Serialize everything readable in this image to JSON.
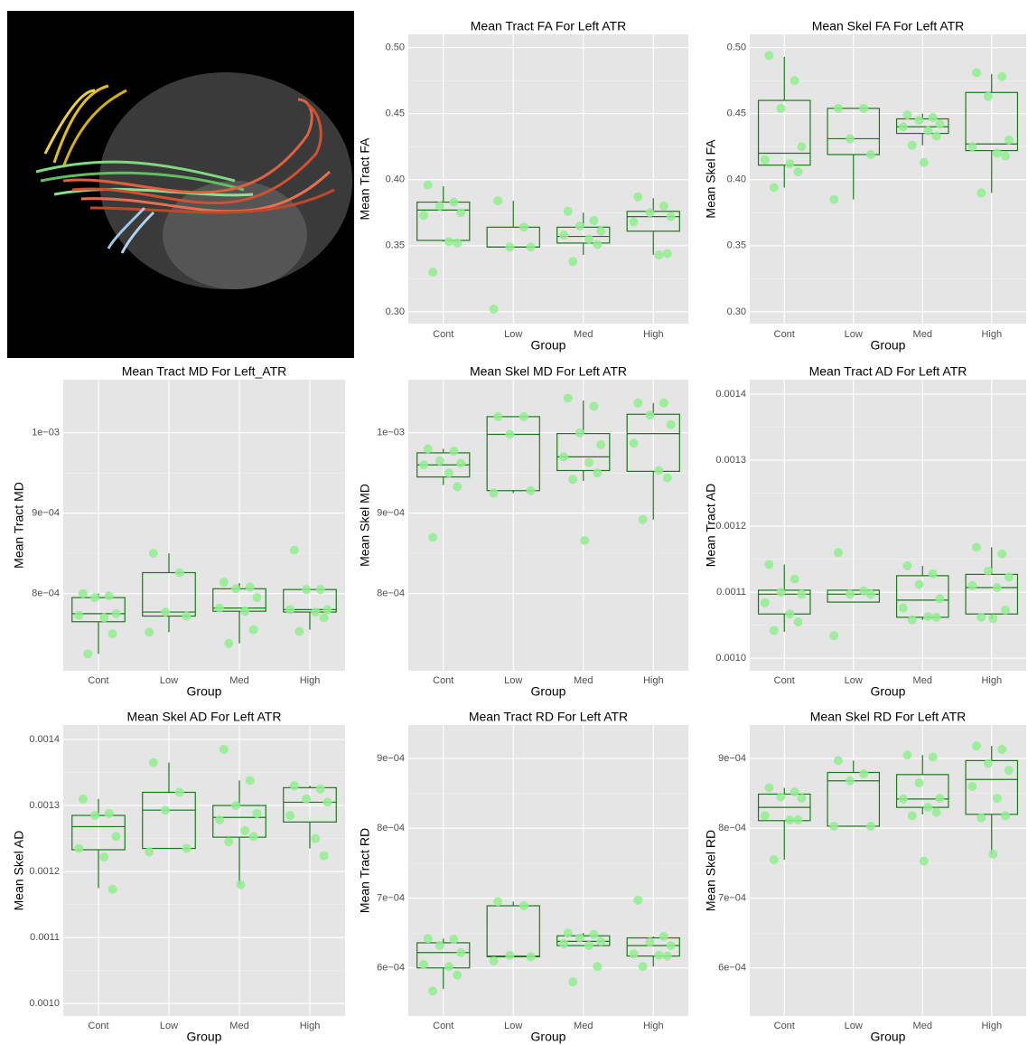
{
  "chart_data": [
    {
      "type": "box",
      "title": "Mean Tract FA For Left ATR",
      "xlabel": "Group",
      "ylabel": "Mean Tract FA",
      "categories": [
        "Cont",
        "Low",
        "Med",
        "High"
      ],
      "box_color": "#1a7a1a",
      "point_color": "#90ee90",
      "grid": true,
      "ylim": [
        0.291,
        0.51
      ],
      "yticks": [
        {
          "value": 0.3,
          "label": "0.30"
        },
        0.35,
        {
          "value": 0.4,
          "label": "0.40"
        },
        0.45,
        {
          "value": 0.5,
          "label": "0.50"
        }
      ],
      "boxes": {
        "lower": [
          0.353,
          0.349,
          0.343,
          0.343
        ],
        "q1": [
          0.354,
          0.349,
          0.352,
          0.361
        ],
        "median": [
          0.377,
          0.349,
          0.357,
          0.372
        ],
        "q3": [
          0.383,
          0.364,
          0.364,
          0.376
        ],
        "upper": [
          0.395,
          0.384,
          0.375,
          0.386
        ]
      },
      "points": [
        [
          0.396,
          0.383,
          0.38,
          0.375,
          0.373,
          0.353,
          0.352,
          0.33
        ],
        [
          0.384,
          0.364,
          0.349,
          0.349,
          0.302
        ],
        [
          0.376,
          0.369,
          0.365,
          0.361,
          0.358,
          0.355,
          0.351,
          0.338
        ],
        [
          0.387,
          0.38,
          0.375,
          0.372,
          0.368,
          0.343,
          0.344
        ]
      ]
    },
    {
      "type": "box",
      "title": "Mean Skel FA For Left ATR",
      "xlabel": "Group",
      "ylabel": "Mean Skel FA",
      "categories": [
        "Cont",
        "Low",
        "Med",
        "High"
      ],
      "box_color": "#1a7a1a",
      "point_color": "#90ee90",
      "grid": true,
      "ylim": [
        0.291,
        0.51
      ],
      "yticks": [
        {
          "value": 0.3,
          "label": "0.30"
        },
        0.35,
        {
          "value": 0.4,
          "label": "0.40"
        },
        0.45,
        {
          "value": 0.5,
          "label": "0.50"
        }
      ],
      "boxes": {
        "lower": [
          0.394,
          0.385,
          0.426,
          0.39
        ],
        "q1": [
          0.411,
          0.419,
          0.435,
          0.422
        ],
        "median": [
          0.42,
          0.431,
          0.44,
          0.427
        ],
        "q3": [
          0.46,
          0.454,
          0.446,
          0.466
        ],
        "upper": [
          0.493,
          0.454,
          0.45,
          0.48
        ]
      },
      "points": [
        [
          0.494,
          0.475,
          0.454,
          0.425,
          0.415,
          0.412,
          0.406,
          0.394
        ],
        [
          0.454,
          0.454,
          0.431,
          0.419,
          0.385
        ],
        [
          0.449,
          0.447,
          0.445,
          0.442,
          0.44,
          0.437,
          0.433,
          0.426,
          0.413
        ],
        [
          0.481,
          0.478,
          0.463,
          0.43,
          0.425,
          0.42,
          0.418,
          0.39
        ]
      ]
    },
    {
      "type": "box",
      "title": "Mean Tract MD For Left_ATR",
      "xlabel": "Group",
      "ylabel": "Mean Tract MD",
      "categories": [
        "Cont",
        "Low",
        "Med",
        "High"
      ],
      "box_color": "#1a7a1a",
      "point_color": "#90ee90",
      "grid": true,
      "ylim": [
        0.000704,
        0.001066
      ],
      "yticks": [
        {
          "value": 0.0008,
          "label": "8e−04"
        },
        {
          "value": 0.0009,
          "label": "9e−04"
        },
        {
          "value": 0.001,
          "label": "1e−03"
        }
      ],
      "boxes": {
        "lower": [
          0.000725,
          0.000752,
          0.000738,
          0.000755
        ],
        "q1": [
          0.000765,
          0.000772,
          0.000778,
          0.000777
        ],
        "median": [
          0.000775,
          0.000777,
          0.000782,
          0.00078
        ],
        "q3": [
          0.000795,
          0.000826,
          0.000806,
          0.000805
        ],
        "upper": [
          0.0008,
          0.00085,
          0.000813,
          0.000806
        ]
      },
      "points": [
        [
          0.0008,
          0.000797,
          0.000795,
          0.000775,
          0.000773,
          0.00077,
          0.00075,
          0.000725
        ],
        [
          0.00085,
          0.000826,
          0.000777,
          0.000772,
          0.000752
        ],
        [
          0.000814,
          0.000808,
          0.000806,
          0.000795,
          0.000782,
          0.000778,
          0.000755,
          0.000738
        ],
        [
          0.000854,
          0.000805,
          0.000805,
          0.00078,
          0.00078,
          0.000777,
          0.00077,
          0.000753
        ]
      ]
    },
    {
      "type": "box",
      "title": "Mean Skel MD For Left ATR",
      "xlabel": "Group",
      "ylabel": "Mean Skel MD",
      "categories": [
        "Cont",
        "Low",
        "Med",
        "High"
      ],
      "box_color": "#1a7a1a",
      "point_color": "#90ee90",
      "grid": true,
      "ylim": [
        0.000704,
        0.001066
      ],
      "yticks": [
        {
          "value": 0.0008,
          "label": "8e−04"
        },
        {
          "value": 0.0009,
          "label": "9e−04"
        },
        {
          "value": 0.001,
          "label": "1e−03"
        }
      ],
      "boxes": {
        "lower": [
          0.000935,
          0.000925,
          0.00094,
          0.000892
        ],
        "q1": [
          0.000945,
          0.000928,
          0.000953,
          0.000952
        ],
        "median": [
          0.00096,
          0.000998,
          0.00097,
          0.000999
        ],
        "q3": [
          0.000975,
          0.00102,
          0.000999,
          0.001023
        ],
        "upper": [
          0.00098,
          0.00102,
          0.00104,
          0.001037
        ]
      },
      "points": [
        [
          0.00098,
          0.000977,
          0.000965,
          0.000962,
          0.00096,
          0.00095,
          0.000933,
          0.00087
        ],
        [
          0.00102,
          0.00102,
          0.000998,
          0.000928,
          0.000925
        ],
        [
          0.001043,
          0.001033,
          0.001,
          0.000985,
          0.00097,
          0.000963,
          0.00095,
          0.000942,
          0.000866
        ],
        [
          0.001037,
          0.001037,
          0.001022,
          0.00101,
          0.000987,
          0.000953,
          0.000944,
          0.000892
        ]
      ]
    },
    {
      "type": "box",
      "title": "Mean Tract AD For Left ATR",
      "xlabel": "Group",
      "ylabel": "Mean Tract AD",
      "categories": [
        "Cont",
        "Low",
        "Med",
        "High"
      ],
      "box_color": "#1a7a1a",
      "point_color": "#90ee90",
      "grid": true,
      "ylim": [
        0.000981,
        0.001422
      ],
      "yticks": [
        {
          "value": 0.001,
          "label": "0.0010"
        },
        0.0011,
        0.0012,
        0.0013,
        0.0014
      ],
      "boxes": {
        "lower": [
          0.00104,
          0.001085,
          0.001058,
          0.00106
        ],
        "q1": [
          0.001067,
          0.001085,
          0.001062,
          0.001067
        ],
        "median": [
          0.001097,
          0.001097,
          0.001088,
          0.001107
        ],
        "q3": [
          0.001103,
          0.001103,
          0.001125,
          0.001127
        ],
        "upper": [
          0.001142,
          0.001103,
          0.00114,
          0.001168
        ]
      },
      "points": [
        [
          0.001142,
          0.00112,
          0.0011,
          0.001097,
          0.001084,
          0.001067,
          0.001055,
          0.001042
        ],
        [
          0.00116,
          0.001102,
          0.001097,
          0.001097,
          0.001034
        ],
        [
          0.00114,
          0.001128,
          0.001112,
          0.00109,
          0.001076,
          0.001063,
          0.001062,
          0.001058
        ],
        [
          0.001168,
          0.001158,
          0.001132,
          0.001123,
          0.00111,
          0.001107,
          0.001073,
          0.001062,
          0.00106
        ]
      ]
    },
    {
      "type": "box",
      "title": "Mean Skel AD For Left ATR",
      "xlabel": "Group",
      "ylabel": "Mean Skel AD",
      "categories": [
        "Cont",
        "Low",
        "Med",
        "High"
      ],
      "box_color": "#1a7a1a",
      "point_color": "#90ee90",
      "grid": true,
      "ylim": [
        0.000981,
        0.001422
      ],
      "yticks": [
        {
          "value": 0.001,
          "label": "0.0010"
        },
        0.0011,
        0.0012,
        0.0013,
        0.0014
      ],
      "boxes": {
        "lower": [
          0.001175,
          0.001235,
          0.00118,
          0.001235
        ],
        "q1": [
          0.001233,
          0.001235,
          0.001252,
          0.001275
        ],
        "median": [
          0.001268,
          0.001293,
          0.001282,
          0.001305
        ],
        "q3": [
          0.001285,
          0.00132,
          0.0013,
          0.001327
        ],
        "upper": [
          0.00131,
          0.001365,
          0.001338,
          0.00133
        ]
      },
      "points": [
        [
          0.00131,
          0.001288,
          0.001285,
          0.001253,
          0.001235,
          0.001222,
          0.001173
        ],
        [
          0.001365,
          0.00132,
          0.001293,
          0.001235,
          0.00123
        ],
        [
          0.001385,
          0.001338,
          0.0013,
          0.001288,
          0.001278,
          0.001262,
          0.001253,
          0.001245,
          0.00118
        ],
        [
          0.00133,
          0.001325,
          0.00131,
          0.001305,
          0.001285,
          0.00125,
          0.001224
        ]
      ]
    },
    {
      "type": "box",
      "title": "Mean Tract RD For Left ATR",
      "xlabel": "Group",
      "ylabel": "Mean Tract RD",
      "categories": [
        "Cont",
        "Low",
        "Med",
        "High"
      ],
      "box_color": "#1a7a1a",
      "point_color": "#90ee90",
      "grid": true,
      "ylim": [
        0.000531,
        0.000948
      ],
      "yticks": [
        {
          "value": 0.0006,
          "label": "6e−04"
        },
        {
          "value": 0.0007,
          "label": "7e−04"
        },
        {
          "value": 0.0008,
          "label": "8e−04"
        },
        {
          "value": 0.0009,
          "label": "9e−04"
        }
      ],
      "boxes": {
        "lower": [
          0.00057,
          0.000616,
          0.000632,
          0.000602
        ],
        "q1": [
          0.0006,
          0.000616,
          0.000632,
          0.000617
        ],
        "median": [
          0.000622,
          0.000617,
          0.000638,
          0.000632
        ],
        "q3": [
          0.000636,
          0.000689,
          0.000646,
          0.000643
        ],
        "upper": [
          0.000642,
          0.000695,
          0.00065,
          0.000645
        ]
      },
      "points": [
        [
          0.000642,
          0.000641,
          0.000632,
          0.000622,
          0.000605,
          0.000602,
          0.00059,
          0.000567
        ],
        [
          0.000695,
          0.000689,
          0.000618,
          0.000616,
          0.00061
        ],
        [
          0.00065,
          0.000648,
          0.000643,
          0.000638,
          0.000635,
          0.000632,
          0.000602,
          0.00058
        ],
        [
          0.000697,
          0.000645,
          0.000637,
          0.000632,
          0.00062,
          0.000618,
          0.000617,
          0.000602
        ]
      ]
    },
    {
      "type": "box",
      "title": "Mean Skel RD For Left ATR",
      "xlabel": "Group",
      "ylabel": "Mean Skel RD",
      "categories": [
        "Cont",
        "Low",
        "Med",
        "High"
      ],
      "box_color": "#1a7a1a",
      "point_color": "#90ee90",
      "grid": true,
      "ylim": [
        0.000531,
        0.000948
      ],
      "yticks": [
        {
          "value": 0.0006,
          "label": "6e−04"
        },
        {
          "value": 0.0007,
          "label": "7e−04"
        },
        {
          "value": 0.0008,
          "label": "8e−04"
        },
        {
          "value": 0.0009,
          "label": "9e−04"
        }
      ],
      "boxes": {
        "lower": [
          0.000755,
          0.000803,
          0.00082,
          0.000763
        ],
        "q1": [
          0.000811,
          0.000803,
          0.00083,
          0.00082
        ],
        "median": [
          0.00083,
          0.000868,
          0.000842,
          0.00087
        ],
        "q3": [
          0.000849,
          0.00088,
          0.000877,
          0.000897
        ],
        "upper": [
          0.000858,
          0.000897,
          0.000905,
          0.000918
        ]
      },
      "points": [
        [
          0.000858,
          0.000852,
          0.000845,
          0.000843,
          0.000818,
          0.000812,
          0.000812,
          0.000755
        ],
        [
          0.000897,
          0.000878,
          0.000868,
          0.000803,
          0.000803
        ],
        [
          0.000905,
          0.000902,
          0.000865,
          0.000843,
          0.000842,
          0.00083,
          0.000823,
          0.000818,
          0.000753
        ],
        [
          0.000918,
          0.000913,
          0.000893,
          0.000883,
          0.00086,
          0.000843,
          0.000818,
          0.000815,
          0.000763
        ]
      ]
    }
  ]
}
